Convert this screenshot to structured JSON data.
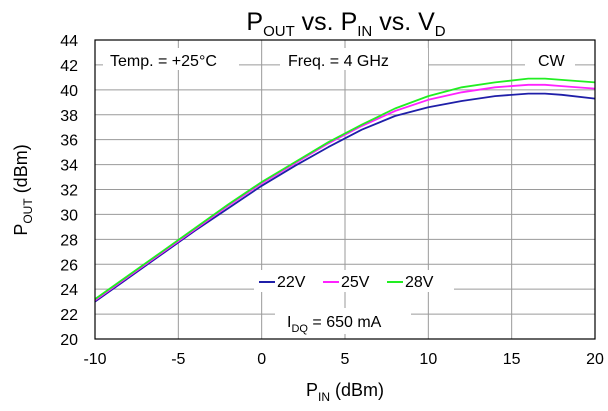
{
  "chart_data": {
    "type": "line",
    "title": {
      "main": "P",
      "sub1": "OUT",
      "mid1": " vs. P",
      "sub2": "IN",
      "mid2": " vs. V",
      "sub3": "D"
    },
    "xlabel": {
      "main": "P",
      "sub": "IN",
      "rest": " (dBm)"
    },
    "ylabel": {
      "main": "P",
      "sub": "OUT",
      "rest": " (dBm)"
    },
    "xlim": [
      -10,
      20
    ],
    "ylim": [
      20,
      44
    ],
    "xticks": [
      "-10",
      "-5",
      "0",
      "5",
      "10",
      "15",
      "20"
    ],
    "yticks": [
      "20",
      "22",
      "24",
      "26",
      "28",
      "30",
      "32",
      "34",
      "36",
      "38",
      "40",
      "42",
      "44"
    ],
    "grid": true,
    "annotations": {
      "temp": "Temp. = +25°C",
      "freq": "Freq. = 4 GHz",
      "mode": "CW",
      "idq": {
        "main": "I",
        "sub": "DQ",
        "rest": " = 650 mA"
      }
    },
    "legend_position": "bottom-center",
    "series": [
      {
        "name": "22V",
        "color": "#1f1fa8",
        "x": [
          -10,
          -8,
          -6,
          -4,
          -2,
          0,
          2,
          4,
          6,
          8,
          10,
          12,
          14,
          16,
          17,
          18,
          20
        ],
        "y": [
          23.0,
          24.9,
          26.8,
          28.7,
          30.5,
          32.3,
          33.9,
          35.4,
          36.8,
          37.9,
          38.6,
          39.1,
          39.5,
          39.7,
          39.7,
          39.6,
          39.3
        ]
      },
      {
        "name": "25V",
        "color": "#ff22ff",
        "x": [
          -10,
          -8,
          -6,
          -4,
          -2,
          0,
          2,
          4,
          6,
          8,
          10,
          12,
          14,
          16,
          17,
          18,
          20
        ],
        "y": [
          23.1,
          25.0,
          26.9,
          28.8,
          30.7,
          32.5,
          34.1,
          35.7,
          37.1,
          38.3,
          39.2,
          39.8,
          40.2,
          40.4,
          40.4,
          40.3,
          40.1
        ]
      },
      {
        "name": "28V",
        "color": "#22ee22",
        "x": [
          -10,
          -8,
          -6,
          -4,
          -2,
          0,
          2,
          4,
          6,
          8,
          10,
          12,
          14,
          16,
          17,
          18,
          20
        ],
        "y": [
          23.2,
          25.1,
          27.0,
          28.9,
          30.8,
          32.6,
          34.2,
          35.8,
          37.2,
          38.5,
          39.5,
          40.2,
          40.6,
          40.9,
          40.9,
          40.8,
          40.6
        ]
      }
    ]
  }
}
